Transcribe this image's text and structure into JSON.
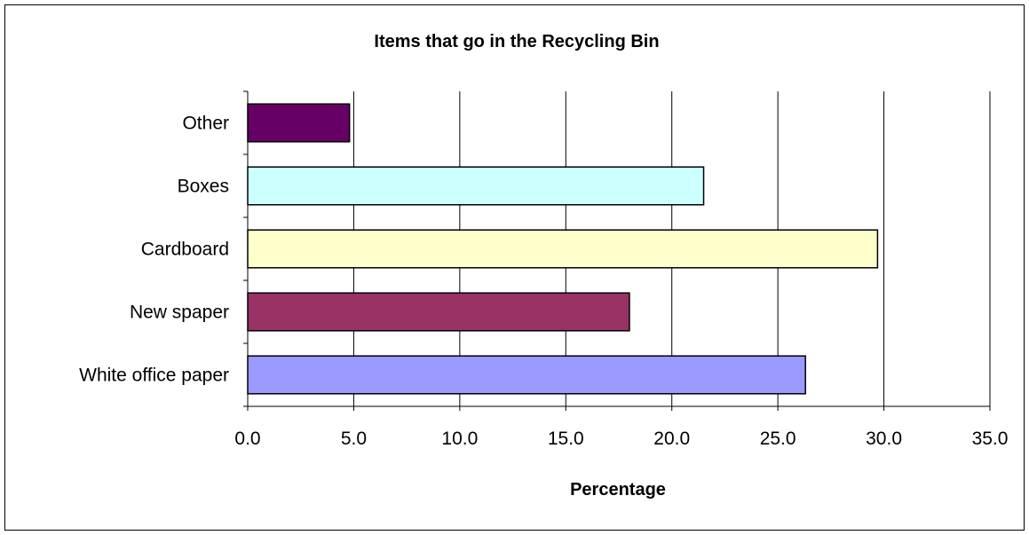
{
  "chart_data": {
    "type": "bar",
    "orientation": "horizontal",
    "title": "Items that go in the Recycling Bin",
    "xlabel": "Percentage",
    "ylabel": "",
    "categories": [
      "White office paper",
      "New spaper",
      "Cardboard",
      "Boxes",
      "Other"
    ],
    "values": [
      26.3,
      18.0,
      29.7,
      21.5,
      4.8
    ],
    "colors": [
      "#9999ff",
      "#993366",
      "#ffffcc",
      "#ccffff",
      "#660066"
    ],
    "xlim": [
      0,
      35
    ],
    "xticks": [
      "0.0",
      "5.0",
      "10.0",
      "15.0",
      "20.0",
      "25.0",
      "30.0",
      "35.0"
    ],
    "grid": "vertical",
    "legend": "none"
  }
}
